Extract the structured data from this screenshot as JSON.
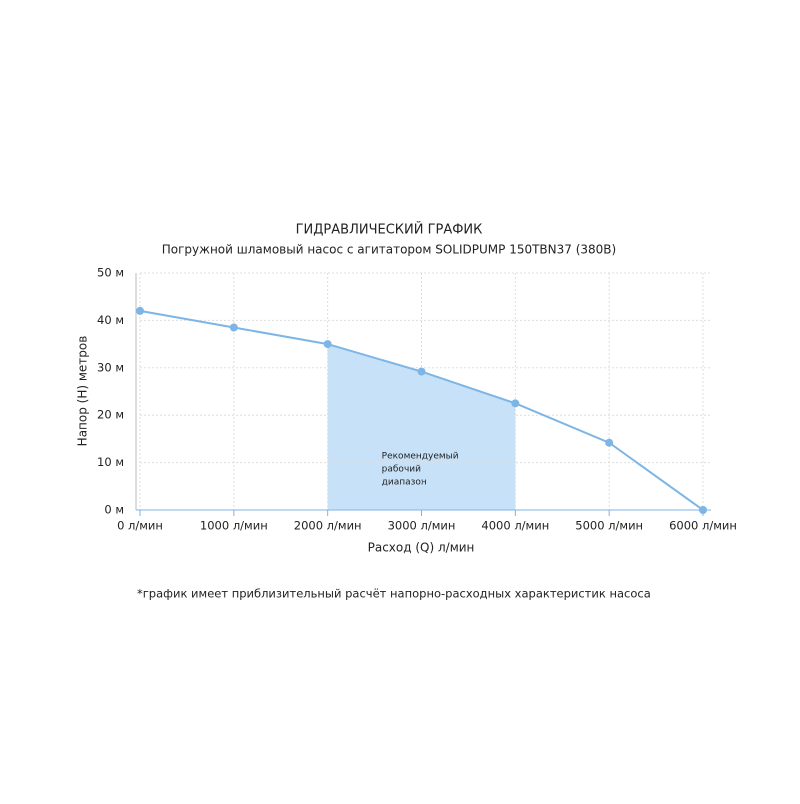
{
  "chart_data": {
    "type": "line",
    "title": "ГИДРАВЛИЧЕСКИЙ ГРАФИК",
    "subtitle": "Погружной шламовый насос с агитатором SOLIDPUMP 150TBN37 (380В)",
    "x_label": "Расход (Q) л/мин",
    "y_label": "Напор (H) метров",
    "footnote": "*график имеет приблизительный расчёт напорно-расходных характеристик насоса",
    "x": [
      0,
      1000,
      2000,
      3000,
      4000,
      5000,
      6000
    ],
    "series": [
      {
        "color": "#7cb5e6",
        "values": [
          42,
          38.5,
          35,
          29.2,
          22.5,
          14.2,
          0
        ]
      }
    ],
    "xlim": [
      0,
      6000
    ],
    "ylim": [
      0,
      50
    ],
    "xticks": [
      {
        "value": 0,
        "label": "0 л/мин"
      },
      {
        "value": 1000,
        "label": "1000 л/мин"
      },
      {
        "value": 2000,
        "label": "2000 л/мин"
      },
      {
        "value": 3000,
        "label": "3000 л/мин"
      },
      {
        "value": 4000,
        "label": "4000 л/мин"
      },
      {
        "value": 5000,
        "label": "5000 л/мин"
      },
      {
        "value": 6000,
        "label": "6000 л/мин"
      }
    ],
    "yticks": [
      {
        "value": 0,
        "label": "0 м"
      },
      {
        "value": 10,
        "label": "10 м"
      },
      {
        "value": 20,
        "label": "20 м"
      },
      {
        "value": 30,
        "label": "30 м"
      },
      {
        "value": 40,
        "label": "40 м"
      },
      {
        "value": 50,
        "label": "50 м"
      }
    ],
    "grid": true,
    "recommended_range": {
      "x": [
        2000,
        4000
      ],
      "color": "#c7e2f8",
      "label": [
        "Рекомендуемый",
        "рабочий",
        "диапазон"
      ]
    }
  }
}
